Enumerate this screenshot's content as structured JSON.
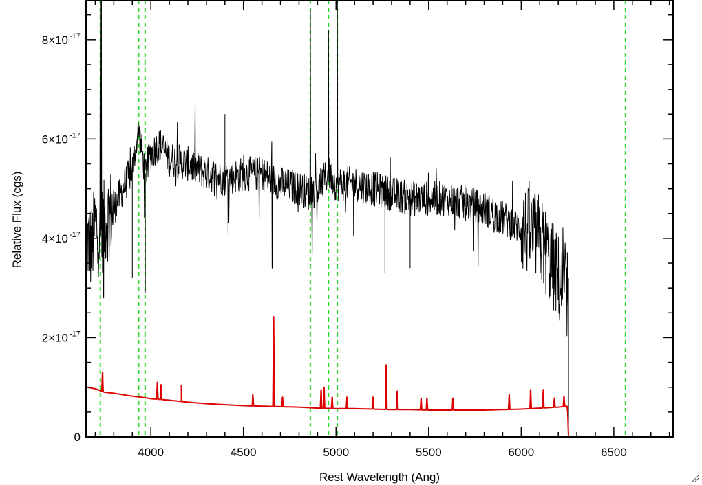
{
  "chart_data": {
    "type": "line",
    "xlabel": "Rest Wavelength (Ang)",
    "ylabel": "Relative Flux (cgs)",
    "xlim": [
      3650,
      6820
    ],
    "ylim": [
      0,
      8.8e-17
    ],
    "x_major_ticks": [
      4000,
      4500,
      5000,
      5500,
      6000,
      6500
    ],
    "x_minor_step": 100,
    "y_major_ticks": [
      {
        "value": 0,
        "mantissa": "0",
        "exponent": ""
      },
      {
        "value": 2e-17,
        "mantissa": "2×10",
        "exponent": "-17"
      },
      {
        "value": 4e-17,
        "mantissa": "4×10",
        "exponent": "-17"
      },
      {
        "value": 6e-17,
        "mantissa": "6×10",
        "exponent": "-17"
      },
      {
        "value": 8e-17,
        "mantissa": "8×10",
        "exponent": "-17"
      }
    ],
    "y_minor_step": 5e-18,
    "unit_scale": 1e-17,
    "reference_lines_x": [
      3727,
      3934,
      3969,
      4861,
      4959,
      5007,
      6563
    ],
    "reference_line_color": "#22dd22",
    "series": [
      {
        "color": "#000000",
        "cutoff_x": 6255,
        "x": [
          3655,
          3680,
          3700,
          3720,
          3740,
          3760,
          3800,
          3850,
          3900,
          3934,
          3969,
          4000,
          4050,
          4100,
          4200,
          4300,
          4400,
          4500,
          4600,
          4700,
          4800,
          4861,
          4900,
          4959,
          5000,
          5100,
          5200,
          5300,
          5400,
          5500,
          5600,
          5700,
          5800,
          5900,
          6000,
          6100,
          6150,
          6200,
          6240,
          6252,
          6255,
          6260,
          6820
        ],
        "y": [
          4.0,
          3.8,
          4.3,
          4.1,
          4.2,
          4.4,
          4.6,
          5.0,
          5.4,
          6.2,
          5.3,
          5.7,
          5.9,
          5.6,
          5.5,
          5.3,
          5.2,
          5.3,
          5.3,
          5.1,
          5.0,
          4.9,
          5.0,
          5.3,
          5.1,
          5.1,
          5.0,
          4.9,
          4.8,
          4.8,
          4.8,
          4.7,
          4.6,
          4.4,
          4.2,
          4.0,
          3.6,
          3.2,
          2.8,
          3.0,
          0.0,
          0.0,
          0.0
        ],
        "spikes": [
          {
            "x": 3727,
            "y": 9.5
          },
          {
            "x": 3733,
            "y": 9.2
          },
          {
            "x": 3745,
            "y": 2.8
          },
          {
            "x": 3900,
            "y": 3.2
          },
          {
            "x": 3970,
            "y": 2.9
          },
          {
            "x": 4400,
            "y": 6.5
          },
          {
            "x": 4655,
            "y": 3.4
          },
          {
            "x": 4861,
            "y": 8.6
          },
          {
            "x": 4959,
            "y": 8.2
          },
          {
            "x": 5007,
            "y": 9.5
          },
          {
            "x": 5264,
            "y": 3.3
          },
          {
            "x": 5400,
            "y": 3.4
          },
          {
            "x": 6252,
            "y": 3.2
          }
        ]
      },
      {
        "color": "#dd0000",
        "x": [
          3655,
          3700,
          3750,
          3800,
          3900,
          3950,
          4000,
          4100,
          4200,
          4300,
          4400,
          4500,
          4600,
          4700,
          4800,
          4900,
          5000,
          5100,
          5200,
          5300,
          5400,
          5500,
          5600,
          5700,
          5800,
          5900,
          6000,
          6100,
          6200,
          6250,
          6255,
          6260,
          6820
        ],
        "y": [
          1.0,
          0.97,
          0.9,
          0.88,
          0.82,
          0.8,
          0.77,
          0.74,
          0.7,
          0.67,
          0.65,
          0.63,
          0.62,
          0.61,
          0.6,
          0.58,
          0.57,
          0.57,
          0.56,
          0.55,
          0.55,
          0.54,
          0.54,
          0.54,
          0.54,
          0.55,
          0.56,
          0.58,
          0.6,
          0.62,
          0.0,
          0.0,
          0.0
        ],
        "spikes": [
          {
            "x": 3740,
            "y": 1.3
          },
          {
            "x": 4035,
            "y": 1.1
          },
          {
            "x": 4055,
            "y": 1.05
          },
          {
            "x": 4165,
            "y": 1.05
          },
          {
            "x": 4550,
            "y": 0.85
          },
          {
            "x": 4662,
            "y": 2.42
          },
          {
            "x": 4710,
            "y": 0.8
          },
          {
            "x": 4920,
            "y": 0.95
          },
          {
            "x": 4935,
            "y": 1.0
          },
          {
            "x": 4980,
            "y": 0.8
          },
          {
            "x": 5060,
            "y": 0.8
          },
          {
            "x": 5200,
            "y": 0.8
          },
          {
            "x": 5270,
            "y": 1.45
          },
          {
            "x": 5330,
            "y": 0.92
          },
          {
            "x": 5460,
            "y": 0.78
          },
          {
            "x": 5490,
            "y": 0.78
          },
          {
            "x": 5630,
            "y": 0.78
          },
          {
            "x": 5935,
            "y": 0.85
          },
          {
            "x": 6050,
            "y": 0.95
          },
          {
            "x": 6120,
            "y": 0.95
          },
          {
            "x": 6180,
            "y": 0.78
          },
          {
            "x": 6230,
            "y": 0.82
          }
        ]
      }
    ]
  }
}
